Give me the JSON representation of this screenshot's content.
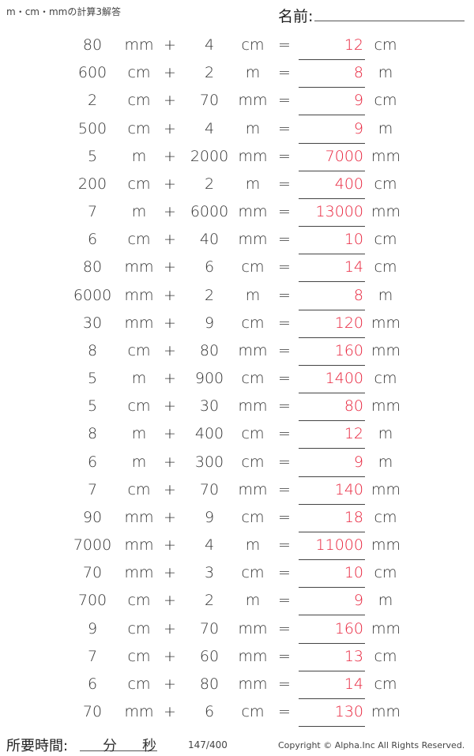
{
  "title": "m・cm・mmの計算3解答",
  "name_label": "名前:",
  "plus": "+",
  "equals": "=",
  "rows": [
    {
      "a": "80",
      "ua": "mm",
      "b": "4",
      "ub": "cm",
      "ans": "12",
      "uans": "cm"
    },
    {
      "a": "600",
      "ua": "cm",
      "b": "2",
      "ub": "m",
      "ans": "8",
      "uans": "m"
    },
    {
      "a": "2",
      "ua": "cm",
      "b": "70",
      "ub": "mm",
      "ans": "9",
      "uans": "cm"
    },
    {
      "a": "500",
      "ua": "cm",
      "b": "4",
      "ub": "m",
      "ans": "9",
      "uans": "m"
    },
    {
      "a": "5",
      "ua": "m",
      "b": "2000",
      "ub": "mm",
      "ans": "7000",
      "uans": "mm"
    },
    {
      "a": "200",
      "ua": "cm",
      "b": "2",
      "ub": "m",
      "ans": "400",
      "uans": "cm"
    },
    {
      "a": "7",
      "ua": "m",
      "b": "6000",
      "ub": "mm",
      "ans": "13000",
      "uans": "mm"
    },
    {
      "a": "6",
      "ua": "cm",
      "b": "40",
      "ub": "mm",
      "ans": "10",
      "uans": "cm"
    },
    {
      "a": "80",
      "ua": "mm",
      "b": "6",
      "ub": "cm",
      "ans": "14",
      "uans": "cm"
    },
    {
      "a": "6000",
      "ua": "mm",
      "b": "2",
      "ub": "m",
      "ans": "8",
      "uans": "m"
    },
    {
      "a": "30",
      "ua": "mm",
      "b": "9",
      "ub": "cm",
      "ans": "120",
      "uans": "mm"
    },
    {
      "a": "8",
      "ua": "cm",
      "b": "80",
      "ub": "mm",
      "ans": "160",
      "uans": "mm"
    },
    {
      "a": "5",
      "ua": "m",
      "b": "900",
      "ub": "cm",
      "ans": "1400",
      "uans": "cm"
    },
    {
      "a": "5",
      "ua": "cm",
      "b": "30",
      "ub": "mm",
      "ans": "80",
      "uans": "mm"
    },
    {
      "a": "8",
      "ua": "m",
      "b": "400",
      "ub": "cm",
      "ans": "12",
      "uans": "m"
    },
    {
      "a": "6",
      "ua": "m",
      "b": "300",
      "ub": "cm",
      "ans": "9",
      "uans": "m"
    },
    {
      "a": "7",
      "ua": "cm",
      "b": "70",
      "ub": "mm",
      "ans": "140",
      "uans": "mm"
    },
    {
      "a": "90",
      "ua": "mm",
      "b": "9",
      "ub": "cm",
      "ans": "18",
      "uans": "cm"
    },
    {
      "a": "7000",
      "ua": "mm",
      "b": "4",
      "ub": "m",
      "ans": "11000",
      "uans": "mm"
    },
    {
      "a": "70",
      "ua": "mm",
      "b": "3",
      "ub": "cm",
      "ans": "10",
      "uans": "cm"
    },
    {
      "a": "700",
      "ua": "cm",
      "b": "2",
      "ub": "m",
      "ans": "9",
      "uans": "m"
    },
    {
      "a": "9",
      "ua": "cm",
      "b": "70",
      "ub": "mm",
      "ans": "160",
      "uans": "mm"
    },
    {
      "a": "7",
      "ua": "cm",
      "b": "60",
      "ub": "mm",
      "ans": "13",
      "uans": "cm"
    },
    {
      "a": "6",
      "ua": "cm",
      "b": "80",
      "ub": "mm",
      "ans": "14",
      "uans": "cm"
    },
    {
      "a": "70",
      "ua": "mm",
      "b": "6",
      "ub": "cm",
      "ans": "130",
      "uans": "mm"
    }
  ],
  "footer": {
    "time_label": "所要時間:",
    "minutes": "分",
    "seconds": "秒",
    "page": "147/400",
    "copyright": "Copyright © Alpha.Inc All Rights Reserved."
  },
  "colors": {
    "answer": "#e8233c"
  }
}
